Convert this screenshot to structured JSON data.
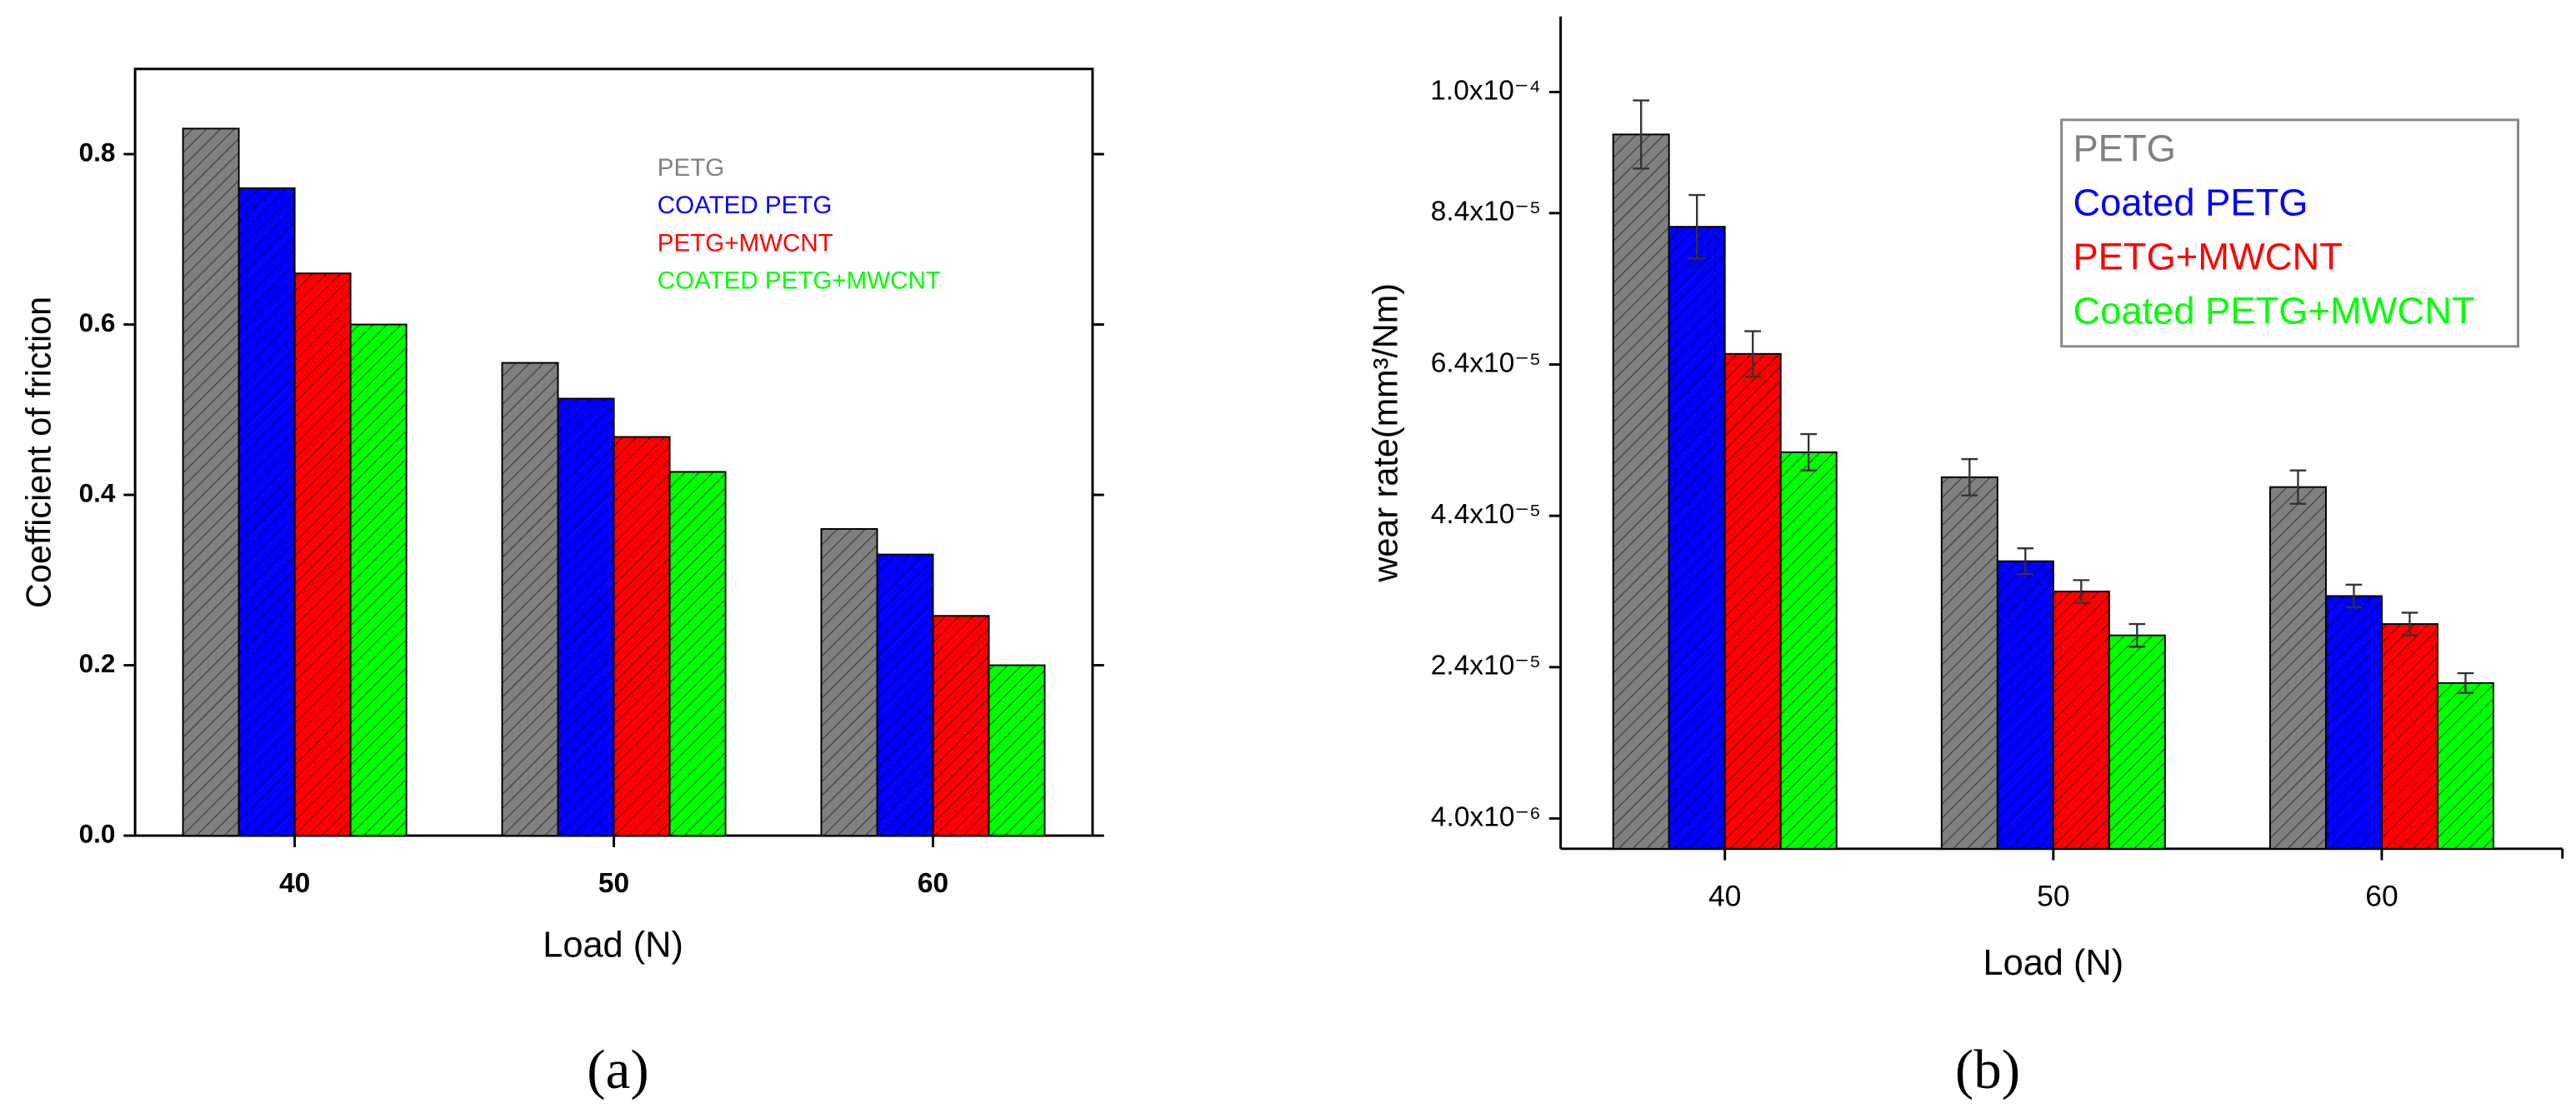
{
  "chart_data": [
    {
      "type": "bar",
      "caption": "(a)",
      "x_label": "Load (N)",
      "y_label": "Coefficient of friction",
      "categories": [
        "40",
        "50",
        "60"
      ],
      "series": [
        {
          "name": "PETG",
          "color": "#808080",
          "values": [
            0.83,
            0.555,
            0.36
          ]
        },
        {
          "name": "COATED PETG",
          "color": "#0000ff",
          "values": [
            0.76,
            0.513,
            0.33
          ]
        },
        {
          "name": "PETG+MWCNT",
          "color": "#ff0000",
          "values": [
            0.66,
            0.468,
            0.258
          ]
        },
        {
          "name": "COATED PETG+MWCNT",
          "color": "#00ff00",
          "values": [
            0.6,
            0.427,
            0.2
          ]
        }
      ],
      "ylim": [
        0,
        0.9
      ],
      "yticks": [
        {
          "value": 0,
          "label": "0.0"
        },
        0.2,
        0.4,
        0.6,
        0.8
      ]
    },
    {
      "type": "bar",
      "caption": "(b)",
      "x_label": "Load (N)",
      "y_label": "wear rate(mm³/Nm)",
      "categories": [
        "40",
        "50",
        "60"
      ],
      "series": [
        {
          "name": "PETG",
          "color": "#808080",
          "values": [
            9.44e-05,
            4.91e-05,
            4.78e-05
          ],
          "errors": [
            4.5e-06,
            2.4e-06,
            2.2e-06
          ]
        },
        {
          "name": "Coated PETG",
          "color": "#0000ff",
          "values": [
            8.22e-05,
            3.8e-05,
            3.34e-05
          ],
          "errors": [
            4.2e-06,
            1.7e-06,
            1.5e-06
          ]
        },
        {
          "name": "PETG+MWCNT",
          "color": "#ff0000",
          "values": [
            6.54e-05,
            3.4e-05,
            2.97e-05
          ],
          "errors": [
            3e-06,
            1.5e-06,
            1.5e-06
          ]
        },
        {
          "name": "Coated PETG+MWCNT",
          "color": "#00ff00",
          "values": [
            5.24e-05,
            2.82e-05,
            2.19e-05
          ],
          "errors": [
            2.4e-06,
            1.5e-06,
            1.3e-06
          ]
        }
      ],
      "ylim": [
        0,
        0.00011
      ],
      "yticks": [
        {
          "value": 4e-06,
          "label": "4.0x10⁻⁶"
        },
        {
          "value": 2.4e-05,
          "label": "2.4x10⁻⁵"
        },
        {
          "value": 4.4e-05,
          "label": "4.4x10⁻⁵"
        },
        {
          "value": 6.4e-05,
          "label": "6.4x10⁻⁵"
        },
        {
          "value": 8.4e-05,
          "label": "8.4x10⁻⁵"
        },
        {
          "value": 0.0001,
          "label": "1.0x10⁻⁴"
        }
      ]
    }
  ]
}
